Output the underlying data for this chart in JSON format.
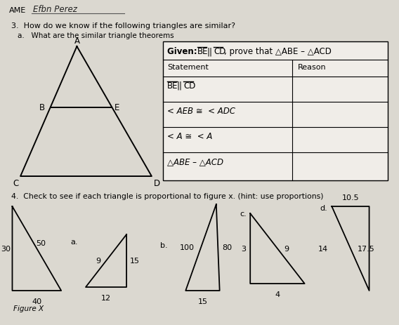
{
  "background_color": "#dbd8d0",
  "name_label": "AME",
  "name_written": "Efbn Perez",
  "title_text": "3.  How do we know if the following triangles are similar?",
  "subtitle_text": "a.   What are the similar triangle theorems",
  "given_header": "Given: ",
  "given_rest": ", prove that △ABE – △ACD",
  "table_col1_header": "Statement",
  "table_col2_header": "Reason",
  "q4_text": "4.  Check to see if each triangle is proportional to figure x. (hint: use proportions)",
  "fig_x_label": "Figure X",
  "tri_a_label": "a.",
  "tri_b_label": "b.",
  "tri_c_label": "c.",
  "tri_d_label": "d.",
  "figx_left": "30",
  "figx_hyp": "50",
  "figx_bot": "40",
  "a_left": "9",
  "a_hyp": "15",
  "a_bot": "12",
  "b_left": "100",
  "b_right": "80",
  "b_bot": "15",
  "c_left": "3",
  "c_hyp": "9",
  "c_bot": "4",
  "d_top": "10.5",
  "d_left": "14",
  "d_hyp": "17.5"
}
